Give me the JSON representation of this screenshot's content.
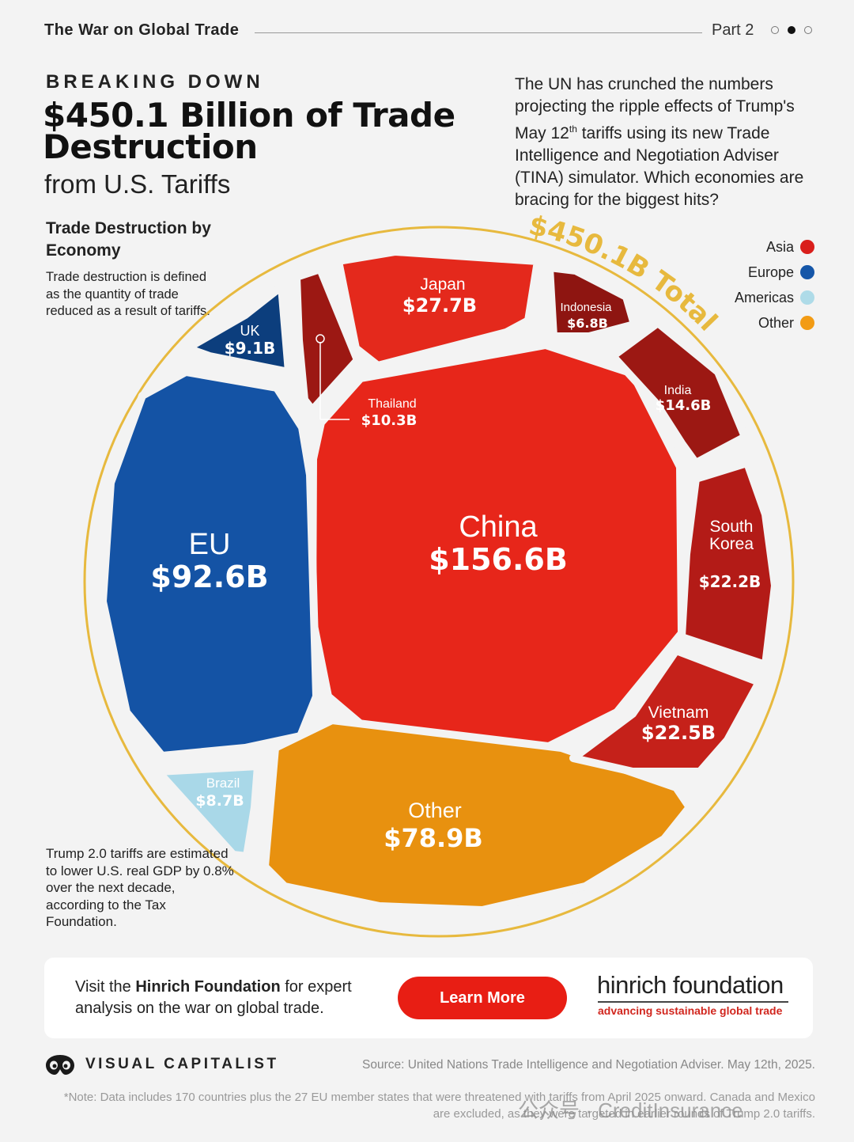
{
  "header": {
    "series_title": "The War on Global Trade",
    "part_label": "Part 2"
  },
  "title": {
    "kicker": "BREAKING DOWN",
    "headline": "$450.1 Billion of Trade Destruction",
    "subhead_prefix": "from",
    "subhead_bold": "U.S. Tariffs"
  },
  "intro": {
    "line1": "The UN has crunched the numbers projecting the ripple effects of Trump's May 12",
    "sup": "th",
    "line2": " tariffs using its new Trade Intelligence and Negotiation Adviser (TINA) simulator. Which economies are bracing for the biggest hits?"
  },
  "section": {
    "title": "Trade Destruction by Economy",
    "desc": "Trade destruction is defined as the quantity of trade reduced as a result of tariffs."
  },
  "gdp_note": "Trump 2.0 tariffs are estimated to lower U.S. real GDP by 0.8% over the next decade, according to the Tax Foundation.",
  "total_label": "$450.1B Total",
  "colors": {
    "asia": "#d91e1b",
    "europe": "#1556a8",
    "americas": "#aedbe8",
    "other": "#f29b14",
    "gold": "#e7b93e"
  },
  "chart_data": {
    "type": "voronoi treemap",
    "title": "Trade Destruction by Economy",
    "unit": "USD billions",
    "total": 450.1,
    "legend": [
      {
        "name": "Asia",
        "color": "#d91e1b"
      },
      {
        "name": "Europe",
        "color": "#1556a8"
      },
      {
        "name": "Americas",
        "color": "#aedbe8"
      },
      {
        "name": "Other",
        "color": "#f29b14"
      }
    ],
    "legend_position": "top-right",
    "cells": [
      {
        "name": "China",
        "value": 156.6,
        "label": "$156.6B",
        "group": "Asia"
      },
      {
        "name": "EU",
        "value": 92.6,
        "label": "$92.6B",
        "group": "Europe"
      },
      {
        "name": "Other",
        "value": 78.9,
        "label": "$78.9B",
        "group": "Other"
      },
      {
        "name": "Japan",
        "value": 27.7,
        "label": "$27.7B",
        "group": "Asia"
      },
      {
        "name": "Vietnam",
        "value": 22.5,
        "label": "$22.5B",
        "group": "Asia"
      },
      {
        "name": "South Korea",
        "value": 22.2,
        "label": "$22.2B",
        "group": "Asia"
      },
      {
        "name": "India",
        "value": 14.6,
        "label": "$14.6B",
        "group": "Asia"
      },
      {
        "name": "Thailand",
        "value": 10.3,
        "label": "$10.3B",
        "group": "Asia"
      },
      {
        "name": "UK",
        "value": 9.1,
        "label": "$9.1B",
        "group": "Europe"
      },
      {
        "name": "Brazil",
        "value": 8.7,
        "label": "$8.7B",
        "group": "Americas"
      },
      {
        "name": "Indonesia",
        "value": 6.8,
        "label": "$6.8B",
        "group": "Asia"
      }
    ]
  },
  "cta": {
    "prefix": "Visit the ",
    "bold": "Hinrich Foundation",
    "suffix": " for expert analysis on the war on global trade.",
    "button": "Learn More",
    "brand_name": "hinrich foundation",
    "brand_tag": "advancing sustainable global trade"
  },
  "footer": {
    "publisher": "VISUAL CAPITALIST",
    "source": "Source: United Nations Trade Intelligence and Negotiation Adviser. May 12th, 2025.",
    "note": "*Note: Data includes 170 countries plus the 27 EU member states that were threatened with tariffs from April 2025 onward. Canada and Mexico are excluded, as they were targeted in earlier rounds of Trump 2.0 tariffs.",
    "watermark": "公众号 · CreditInsurance"
  }
}
